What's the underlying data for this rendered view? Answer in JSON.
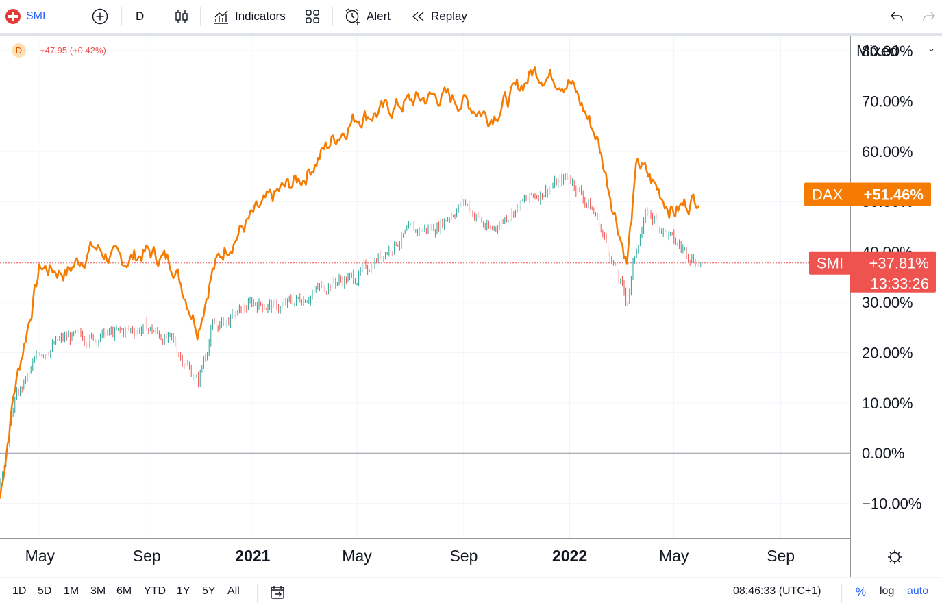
{
  "toolbar": {
    "symbol": "SMI",
    "interval": "D",
    "indicators_label": "Indicators",
    "alert_label": "Alert",
    "replay_label": "Replay"
  },
  "legend": {
    "badge": "D",
    "change": "+47.95 (+0.42%)"
  },
  "scale_mode": "Mixed",
  "bottom": {
    "ranges": [
      "1D",
      "5D",
      "1M",
      "3M",
      "6M",
      "YTD",
      "1Y",
      "5Y",
      "All"
    ],
    "clock": "08:46:33 (UTC+1)",
    "pct": "%",
    "log": "log",
    "auto": "auto"
  },
  "colors": {
    "dax": "#f57c00",
    "smi_up": "#26a69a",
    "smi_down": "#ef5350",
    "smi_label": "#ef5350",
    "grid": "#f0f3fa"
  },
  "chart_data": {
    "type": "line",
    "ylabel_ticks": [
      "80.00%",
      "70.00%",
      "60.00%",
      "50.00%",
      "40.00%",
      "30.00%",
      "20.00%",
      "10.00%",
      "0.00%",
      "−10.00%"
    ],
    "x_ticks": [
      "May",
      "Sep",
      "2021",
      "May",
      "Sep",
      "2022",
      "May",
      "Sep"
    ],
    "x_ticks_bold": [
      false,
      false,
      true,
      false,
      false,
      true,
      false,
      false
    ],
    "ylim": [
      -17,
      83
    ],
    "x_dates": [
      "2020-03-16",
      "2020-04-01",
      "2020-05-01",
      "2020-06-01",
      "2020-07-01",
      "2020-08-01",
      "2020-09-01",
      "2020-10-01",
      "2020-10-30",
      "2020-11-15",
      "2020-12-01",
      "2021-01-01",
      "2021-02-01",
      "2021-03-01",
      "2021-04-01",
      "2021-05-01",
      "2021-06-01",
      "2021-07-01",
      "2021-08-01",
      "2021-09-01",
      "2021-10-01",
      "2021-11-01",
      "2021-11-20",
      "2022-01-01",
      "2022-02-01",
      "2022-03-08",
      "2022-03-20",
      "2022-04-01",
      "2022-05-01",
      "2022-06-01"
    ],
    "series": [
      {
        "name": "DAX",
        "label": "+51.46%",
        "values": [
          -9,
          12,
          37,
          36,
          41,
          38,
          40,
          38,
          25,
          36,
          41,
          47,
          52,
          55,
          62,
          67,
          68,
          70,
          71,
          70,
          67,
          72,
          76,
          74,
          63,
          38,
          58,
          55,
          48,
          51.46
        ]
      },
      {
        "name": "SMI",
        "label": "+37.81%",
        "time": "13:33:26",
        "values": [
          -7,
          10,
          20,
          23,
          23,
          24,
          25,
          22,
          14,
          25,
          26,
          30,
          29,
          31,
          34,
          35,
          40,
          44,
          45,
          50,
          44,
          49,
          51,
          55,
          47,
          30,
          42,
          48,
          42,
          37.81
        ]
      }
    ]
  }
}
